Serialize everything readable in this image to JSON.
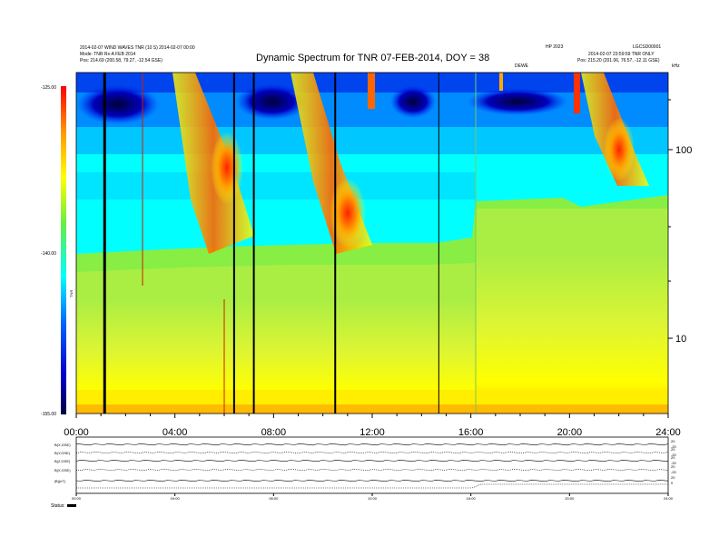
{
  "header": {
    "title": "Dynamic Spectrum for TNR 07-FEB-2014, DOY = 38",
    "left_line1": "2014-02-07 WIND WAVES TNR (10 S) 2014-02-07 00:00 ",
    "left_line2": "Mode: TNR Rx-A FEB 2014",
    "left_line3": "Pos: 214.69 (200.58, 79.27, -12.54 GSE)",
    "right_line0": "HP 2023",
    "right_line0b": "LGCSD00001",
    "right_line1": "2014-02-07 23:59:59 TNR ONLY",
    "right_line2": "Pos: 215.20 (201.06, 76.57, -12.11 GSE)",
    "right_small": "DEWE",
    "right_corner": "kHz"
  },
  "colorbar": {
    "ticks": [
      "-125.00",
      "-140.00",
      "-155.00"
    ],
    "label": "TNR"
  },
  "chart_data": [
    {
      "type": "heatmap",
      "title": "Dynamic Spectrum for TNR 07-FEB-2014, DOY = 38",
      "x_ticks": [
        "00:00",
        "04:00",
        "08:00",
        "12:00",
        "16:00",
        "20:00",
        "24:00"
      ],
      "y_ticks": [
        "100",
        "10"
      ],
      "y_scale": "log",
      "colorbar_range": [
        -155.0,
        -125.0
      ],
      "colorbar_ticks": [
        -125.0,
        -140.0,
        -155.0
      ],
      "data_gap_hours": [
        1.15,
        6.4,
        7.2,
        10.5,
        14.7
      ],
      "bursts": [
        {
          "start_hour": 4.0,
          "peak_hour": 6.0
        },
        {
          "start_hour": 8.5,
          "peak_hour": 10.5
        },
        {
          "start_hour": 19.5,
          "peak_hour": 22.0
        }
      ]
    },
    {
      "type": "line",
      "panels": [
        "B(X,GSE)",
        "B(Y,GSE)",
        "B(Z,GSE)",
        "B(X,GSE)",
        "|B|(nT)"
      ],
      "right_ticks": [
        [
          "20",
          "-20"
        ],
        [
          "20",
          "-20"
        ],
        [
          "20",
          "-20"
        ],
        [
          "20",
          "-20"
        ],
        [
          "20",
          "0"
        ]
      ],
      "x_ticks": [
        "00:00",
        "04:00",
        "08:00",
        "12:00",
        "16:00",
        "20:00",
        "24:00"
      ],
      "status_label": "Status:"
    }
  ],
  "colors": {
    "ramp": [
      "#000018",
      "#0000aa",
      "#0050ff",
      "#00ffff",
      "#66ee44",
      "#ffff00",
      "#ff9900",
      "#ff0000"
    ]
  }
}
